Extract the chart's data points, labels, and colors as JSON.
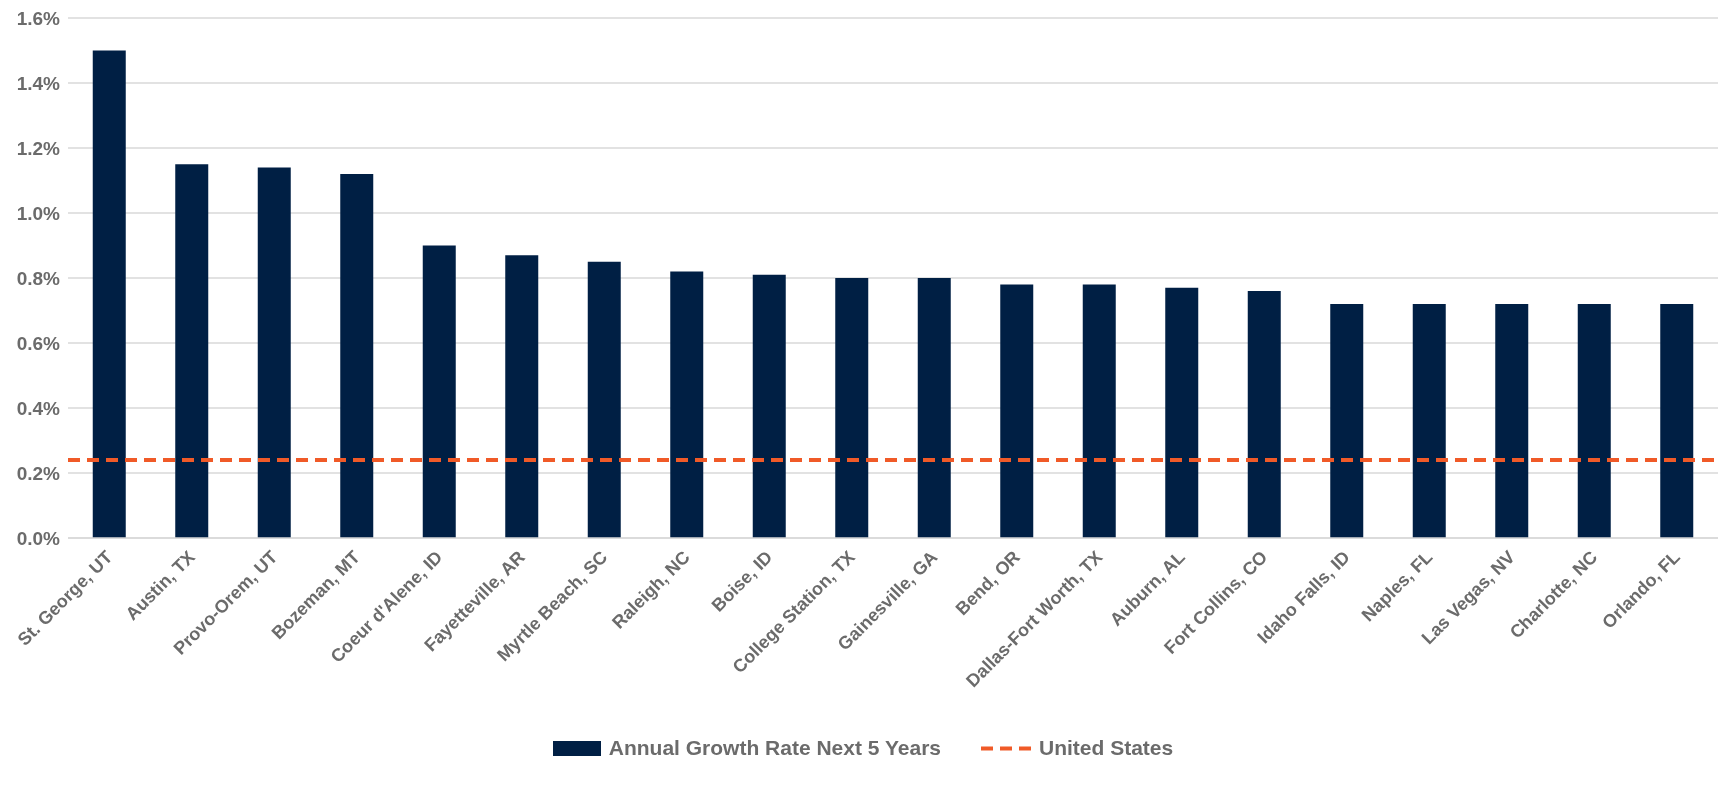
{
  "chart_data": {
    "type": "bar",
    "categories": [
      "St. George, UT",
      "Austin, TX",
      "Provo-Orem, UT",
      "Bozeman, MT",
      "Coeur d'Alene, ID",
      "Fayetteville, AR",
      "Myrtle Beach, SC",
      "Raleigh, NC",
      "Boise, ID",
      "College Station, TX",
      "Gainesville, GA",
      "Bend, OR",
      "Dallas-Fort Worth, TX",
      "Auburn, AL",
      "Fort Collins, CO",
      "Idaho Falls, ID",
      "Naples, FL",
      "Las Vegas, NV",
      "Charlotte, NC",
      "Orlando, FL"
    ],
    "series": [
      {
        "name": "Annual Growth Rate Next 5 Years",
        "color": "#001f44",
        "values": [
          1.5,
          1.15,
          1.14,
          1.12,
          0.9,
          0.87,
          0.85,
          0.82,
          0.81,
          0.8,
          0.8,
          0.78,
          0.78,
          0.77,
          0.76,
          0.72,
          0.72,
          0.72,
          0.72,
          0.72
        ]
      }
    ],
    "ref_lines": [
      {
        "axis": "y",
        "value": 0.24,
        "label": "United States",
        "color": "#f05a28",
        "line_style": "dashed"
      }
    ],
    "ylim": [
      0,
      1.6
    ],
    "yticks": [
      {
        "value": 0,
        "label": "0.0%"
      },
      {
        "value": 0.2,
        "label": "0.2%"
      },
      {
        "value": 0.4,
        "label": "0.4%"
      },
      {
        "value": 0.6,
        "label": "0.6%"
      },
      {
        "value": 0.8,
        "label": "0.8%"
      },
      {
        "value": 1.0,
        "label": "1.0%"
      },
      {
        "value": 1.2,
        "label": "1.2%"
      },
      {
        "value": 1.4,
        "label": "1.4%"
      },
      {
        "value": 1.6,
        "label": "1.6%"
      }
    ],
    "grid": "y",
    "legend": "bottom"
  }
}
